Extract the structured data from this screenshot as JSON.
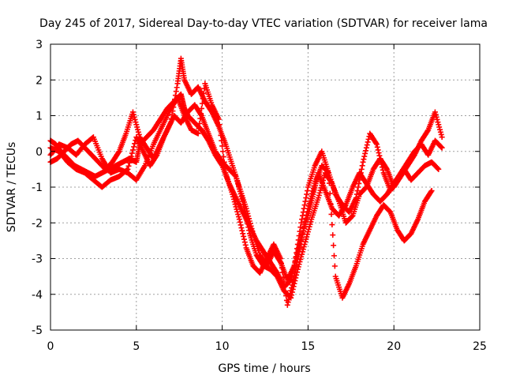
{
  "chart_data": {
    "type": "scatter",
    "title": "Day 245 of 2017, Sidereal Day-to-day VTEC variation (SDTVAR) for receiver lama",
    "xlabel": "GPS time / hours",
    "ylabel": "SDTVAR / TECUs",
    "xlim": [
      0,
      25
    ],
    "ylim": [
      -5,
      3
    ],
    "xticks": [
      0,
      5,
      10,
      15,
      20,
      25
    ],
    "yticks": [
      -5,
      -4,
      -3,
      -2,
      -1,
      0,
      1,
      2,
      3
    ],
    "xtick_labels": [
      "0",
      "5",
      "10",
      "15",
      "20",
      "25"
    ],
    "ytick_labels": [
      "-5",
      "-4",
      "-3",
      "-2",
      "-1",
      "0",
      "1",
      "2",
      "3"
    ],
    "grid": true,
    "marker": "+",
    "series_color": "#ff0000",
    "series": [
      {
        "points": [
          [
            0,
            0.3
          ],
          [
            0.3,
            0.2
          ],
          [
            0.6,
            0.0
          ],
          [
            1.0,
            -0.2
          ],
          [
            1.4,
            -0.4
          ],
          [
            1.8,
            -0.5
          ],
          [
            2.2,
            -0.6
          ],
          [
            2.6,
            -0.7
          ],
          [
            3.0,
            -0.6
          ],
          [
            3.4,
            -0.5
          ],
          [
            3.8,
            -0.4
          ],
          [
            4.2,
            -0.3
          ],
          [
            4.6,
            -0.2
          ],
          [
            5.0,
            -0.3
          ],
          [
            5.2,
            0.2
          ],
          [
            5.6,
            0.4
          ],
          [
            6.0,
            0.6
          ],
          [
            6.4,
            0.9
          ],
          [
            6.8,
            1.2
          ],
          [
            7.2,
            1.4
          ],
          [
            7.6,
            1.6
          ],
          [
            7.8,
            1.2
          ],
          [
            8.0,
            1.0
          ],
          [
            8.4,
            0.8
          ],
          [
            8.8,
            0.6
          ],
          [
            9.2,
            0.3
          ],
          [
            9.6,
            -0.1
          ],
          [
            10.0,
            -0.4
          ],
          [
            10.4,
            -0.9
          ],
          [
            10.8,
            -1.3
          ],
          [
            11.2,
            -1.7
          ],
          [
            11.6,
            -2.1
          ],
          [
            12.0,
            -2.5
          ],
          [
            12.4,
            -2.8
          ],
          [
            12.8,
            -3.1
          ],
          [
            13.2,
            -3.4
          ],
          [
            13.6,
            -3.8
          ],
          [
            14.0,
            -3.6
          ],
          [
            14.3,
            -3.0
          ],
          [
            14.6,
            -2.4
          ],
          [
            15.0,
            -1.8
          ],
          [
            15.3,
            -1.2
          ],
          [
            15.6,
            -0.6
          ],
          [
            16.0,
            -1.1
          ],
          [
            16.4,
            -1.6
          ],
          [
            16.8,
            -1.8
          ],
          [
            17.2,
            -1.5
          ],
          [
            17.6,
            -1.0
          ],
          [
            18.0,
            -0.6
          ],
          [
            18.4,
            -0.9
          ],
          [
            18.8,
            -1.2
          ],
          [
            19.2,
            -1.4
          ],
          [
            19.6,
            -1.2
          ],
          [
            20.0,
            -0.9
          ],
          [
            20.4,
            -0.6
          ],
          [
            20.8,
            -0.3
          ],
          [
            21.2,
            0.0
          ],
          [
            21.6,
            0.2
          ],
          [
            22.0,
            -0.1
          ],
          [
            22.4,
            0.3
          ],
          [
            22.8,
            0.1
          ]
        ]
      },
      {
        "points": [
          [
            0,
            -0.3
          ],
          [
            0.4,
            -0.2
          ],
          [
            0.8,
            0.0
          ],
          [
            1.2,
            0.2
          ],
          [
            1.6,
            0.3
          ],
          [
            2.0,
            0.1
          ],
          [
            2.4,
            -0.1
          ],
          [
            2.8,
            -0.3
          ],
          [
            3.2,
            -0.5
          ],
          [
            3.6,
            -0.3
          ],
          [
            4.0,
            0.0
          ],
          [
            4.4,
            0.5
          ],
          [
            4.8,
            1.1
          ],
          [
            5.2,
            0.4
          ],
          [
            5.6,
            0.1
          ],
          [
            6.0,
            -0.2
          ],
          [
            6.4,
            0.2
          ],
          [
            6.8,
            0.6
          ],
          [
            7.2,
            1.0
          ],
          [
            7.6,
            0.8
          ],
          [
            8.0,
            1.1
          ],
          [
            8.4,
            1.3
          ],
          [
            8.8,
            1.0
          ],
          [
            9.2,
            0.5
          ],
          [
            9.6,
            0.0
          ],
          [
            10.0,
            -0.3
          ],
          [
            10.4,
            -0.5
          ],
          [
            10.8,
            -0.7
          ],
          [
            11.2,
            -1.4
          ],
          [
            11.6,
            -2.3
          ],
          [
            12.0,
            -2.9
          ],
          [
            12.4,
            -3.2
          ],
          [
            12.8,
            -3.3
          ],
          [
            13.2,
            -3.5
          ],
          [
            13.6,
            -3.9
          ],
          [
            14.0,
            -4.1
          ],
          [
            14.4,
            -3.3
          ],
          [
            14.8,
            -2.6
          ],
          [
            15.2,
            -1.9
          ],
          [
            15.6,
            -1.3
          ],
          [
            16.0,
            -0.6
          ],
          [
            16.4,
            -0.9
          ],
          [
            16.8,
            -1.4
          ],
          [
            17.2,
            -2.0
          ],
          [
            17.6,
            -1.8
          ],
          [
            18.0,
            -1.2
          ],
          [
            18.4,
            -1.0
          ],
          [
            18.8,
            -0.5
          ],
          [
            19.2,
            -0.2
          ],
          [
            19.6,
            -0.5
          ],
          [
            20.0,
            -1.0
          ],
          [
            20.4,
            -0.7
          ],
          [
            20.8,
            -0.4
          ],
          [
            21.2,
            -0.1
          ],
          [
            21.6,
            0.3
          ],
          [
            22.0,
            0.6
          ],
          [
            22.4,
            1.1
          ],
          [
            22.8,
            0.4
          ]
        ]
      },
      {
        "points": [
          [
            0,
            0.1
          ],
          [
            0.5,
            0.0
          ],
          [
            1.0,
            -0.3
          ],
          [
            1.5,
            -0.5
          ],
          [
            2.0,
            -0.6
          ],
          [
            2.5,
            -0.8
          ],
          [
            3.0,
            -1.0
          ],
          [
            3.5,
            -0.8
          ],
          [
            4.0,
            -0.7
          ],
          [
            4.5,
            -0.5
          ],
          [
            5.0,
            0.4
          ],
          [
            5.4,
            0.0
          ],
          [
            5.8,
            -0.4
          ],
          [
            6.2,
            -0.1
          ],
          [
            6.6,
            0.4
          ],
          [
            7.0,
            0.8
          ],
          [
            7.4,
            1.9
          ],
          [
            7.6,
            2.6
          ],
          [
            7.8,
            2.0
          ],
          [
            8.2,
            1.6
          ],
          [
            8.6,
            1.8
          ],
          [
            9.0,
            1.4
          ],
          [
            9.4,
            1.1
          ],
          [
            9.8,
            0.7
          ],
          [
            10.2,
            0.2
          ],
          [
            10.6,
            -0.4
          ],
          [
            11.0,
            -1.0
          ],
          [
            11.4,
            -1.6
          ],
          [
            11.8,
            -2.3
          ],
          [
            12.2,
            -2.9
          ],
          [
            12.6,
            -3.2
          ],
          [
            13.0,
            -2.8
          ],
          [
            13.4,
            -3.1
          ],
          [
            13.8,
            -3.6
          ],
          [
            14.2,
            -3.2
          ],
          [
            14.6,
            -2.0
          ],
          [
            15.0,
            -1.0
          ],
          [
            15.4,
            -0.4
          ],
          [
            15.8,
            0.0
          ],
          [
            16.2,
            -0.6
          ],
          [
            16.6,
            -3.5
          ],
          [
            17.0,
            -4.1
          ],
          [
            17.4,
            -3.7
          ],
          [
            17.8,
            -3.2
          ],
          [
            18.2,
            -2.6
          ],
          [
            18.6,
            -2.2
          ],
          [
            19.0,
            -1.8
          ],
          [
            19.4,
            -1.5
          ],
          [
            19.8,
            -1.7
          ],
          [
            20.2,
            -2.2
          ],
          [
            20.6,
            -2.5
          ],
          [
            21.0,
            -2.3
          ],
          [
            21.4,
            -1.9
          ],
          [
            21.8,
            -1.4
          ],
          [
            22.2,
            -1.1
          ]
        ]
      },
      {
        "points": [
          [
            0,
            -0.1
          ],
          [
            0.5,
            0.2
          ],
          [
            1.0,
            0.1
          ],
          [
            1.5,
            -0.1
          ],
          [
            2.0,
            0.2
          ],
          [
            2.5,
            0.4
          ],
          [
            3.0,
            -0.2
          ],
          [
            3.5,
            -0.6
          ],
          [
            4.0,
            -0.5
          ],
          [
            4.5,
            -0.6
          ],
          [
            5.0,
            -0.8
          ],
          [
            5.5,
            -0.4
          ],
          [
            6.0,
            0.2
          ],
          [
            6.5,
            0.7
          ],
          [
            7.0,
            1.2
          ],
          [
            7.4,
            1.5
          ],
          [
            7.8,
            1.0
          ],
          [
            8.2,
            0.6
          ],
          [
            8.6,
            0.5
          ],
          [
            9.0,
            1.9
          ],
          [
            9.4,
            1.3
          ],
          [
            9.8,
            0.9
          ],
          [
            10.2,
            -0.6
          ],
          [
            10.6,
            -1.2
          ],
          [
            11.0,
            -1.9
          ],
          [
            11.4,
            -2.7
          ],
          [
            11.8,
            -3.2
          ],
          [
            12.2,
            -3.4
          ],
          [
            12.6,
            -3.0
          ],
          [
            13.0,
            -2.6
          ],
          [
            13.4,
            -3.0
          ],
          [
            13.8,
            -4.3
          ],
          [
            14.2,
            -3.5
          ],
          [
            14.6,
            -2.5
          ],
          [
            15.0,
            -1.6
          ],
          [
            15.4,
            -0.9
          ],
          [
            15.8,
            -0.4
          ],
          [
            16.2,
            -0.6
          ],
          [
            16.6,
            -1.2
          ],
          [
            17.0,
            -1.5
          ],
          [
            17.4,
            -1.7
          ],
          [
            17.8,
            -1.3
          ],
          [
            18.2,
            -0.3
          ],
          [
            18.6,
            0.5
          ],
          [
            19.0,
            0.2
          ],
          [
            19.4,
            -0.6
          ],
          [
            19.8,
            -1.1
          ],
          [
            20.2,
            -0.8
          ],
          [
            20.6,
            -0.5
          ],
          [
            21.0,
            -0.8
          ],
          [
            21.4,
            -0.6
          ],
          [
            21.8,
            -0.4
          ],
          [
            22.2,
            -0.3
          ],
          [
            22.6,
            -0.5
          ]
        ]
      }
    ]
  }
}
